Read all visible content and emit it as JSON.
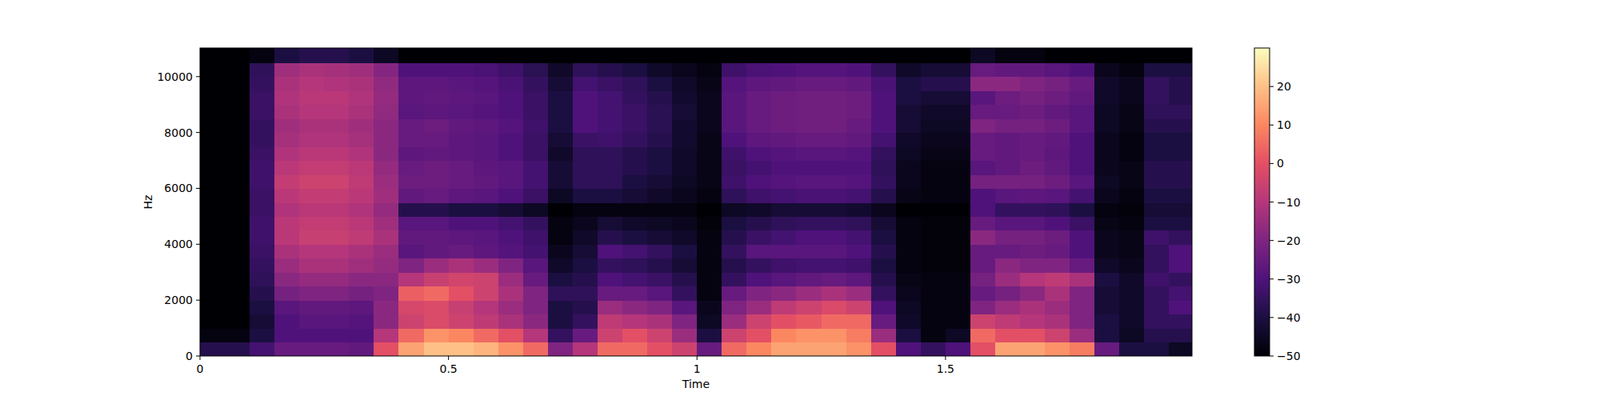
{
  "chart_data": {
    "type": "heatmap",
    "x_label": "Time",
    "y_label": "Hz",
    "color": "magma",
    "x": [
      0,
      0.05,
      0.1,
      0.15,
      0.2,
      0.25,
      0.3,
      0.35,
      0.4,
      0.45,
      0.5,
      0.55,
      0.6,
      0.65,
      0.7,
      0.75,
      0.8,
      0.85,
      0.9,
      0.95,
      1.0,
      1.05,
      1.1,
      1.15,
      1.2,
      1.25,
      1.3,
      1.35,
      1.4,
      1.45,
      1.5,
      1.55,
      1.6,
      1.65,
      1.7,
      1.75,
      1.8,
      1.85,
      1.9,
      1.95,
      2.0
    ],
    "y": [
      0,
      500,
      1000,
      1500,
      2000,
      2500,
      3000,
      3500,
      4000,
      4500,
      5000,
      5500,
      6000,
      6500,
      7000,
      7500,
      8000,
      8500,
      9000,
      9500,
      10000,
      10500,
      11025
    ],
    "z": [
      [
        -38,
        -48,
        -50,
        -50,
        -50,
        -50,
        -50,
        -50,
        -50,
        -50,
        -50,
        -50,
        -50,
        -50,
        -50,
        -50,
        -50,
        -50,
        -50,
        -50,
        -50,
        -50
      ],
      [
        -38,
        -48,
        -50,
        -50,
        -50,
        -50,
        -50,
        -50,
        -50,
        -50,
        -50,
        -50,
        -50,
        -50,
        -50,
        -50,
        -50,
        -50,
        -50,
        -50,
        -50,
        -50
      ],
      [
        -32,
        -40,
        -42,
        -40,
        -38,
        -36,
        -35,
        -34,
        -33,
        -33,
        -34,
        -34,
        -33,
        -33,
        -34,
        -35,
        -35,
        -34,
        -34,
        -35,
        -36,
        -48
      ],
      [
        -25,
        -30,
        -30,
        -28,
        -22,
        -18,
        -15,
        -12,
        -9,
        -9,
        -11,
        -9,
        -7,
        -9,
        -11,
        -13,
        -14,
        -12,
        -11,
        -12,
        -14,
        -40
      ],
      [
        -25,
        -30,
        -28,
        -26,
        -20,
        -16,
        -12,
        -10,
        -6,
        -7,
        -9,
        -7,
        -5,
        -7,
        -9,
        -11,
        -12,
        -10,
        -9,
        -10,
        -12,
        -38
      ],
      [
        -25,
        -30,
        -28,
        -26,
        -20,
        -16,
        -12,
        -10,
        -6,
        -7,
        -9,
        -7,
        -5,
        -7,
        -9,
        -11,
        -12,
        -10,
        -9,
        -11,
        -13,
        -38
      ],
      [
        -26,
        -30,
        -29,
        -27,
        -22,
        -18,
        -14,
        -12,
        -8,
        -9,
        -11,
        -9,
        -8,
        -9,
        -11,
        -13,
        -14,
        -12,
        -11,
        -12,
        -14,
        -40
      ],
      [
        0,
        -10,
        -18,
        -18,
        -20,
        -18,
        -16,
        -15,
        -12,
        -14,
        -16,
        -14,
        -15,
        -16,
        -18,
        -18,
        -18,
        -17,
        -16,
        -17,
        -19,
        -45
      ],
      [
        15,
        5,
        -5,
        -3,
        3,
        -10,
        -20,
        -28,
        -26,
        -28,
        -38,
        -26,
        -24,
        -25,
        -27,
        -25,
        -25,
        -28,
        -27,
        -27,
        -30,
        -50
      ],
      [
        20,
        12,
        -2,
        -2,
        5,
        -6,
        -15,
        -26,
        -26,
        -28,
        -38,
        -25,
        -24,
        -24,
        -26,
        -25,
        -24,
        -27,
        -26,
        -27,
        -30,
        -50
      ],
      [
        20,
        10,
        -5,
        -6,
        0,
        -4,
        -12,
        -25,
        -27,
        -30,
        -40,
        -27,
        -25,
        -25,
        -27,
        -27,
        -26,
        -28,
        -27,
        -28,
        -30,
        -50
      ],
      [
        18,
        5,
        -8,
        -10,
        -5,
        -5,
        -15,
        -27,
        -28,
        -30,
        -40,
        -28,
        -26,
        -27,
        -28,
        -28,
        -27,
        -29,
        -28,
        -29,
        -31,
        -50
      ],
      [
        12,
        0,
        -12,
        -15,
        -12,
        -15,
        -20,
        -29,
        -30,
        -32,
        -42,
        -30,
        -28,
        -28,
        -30,
        -30,
        -29,
        -30,
        -30,
        -31,
        -33,
        -50
      ],
      [
        5,
        -10,
        -18,
        -20,
        -20,
        -25,
        -28,
        -32,
        -33,
        -35,
        -45,
        -34,
        -32,
        -32,
        -34,
        -34,
        -33,
        -34,
        -34,
        -35,
        -37,
        -50
      ],
      [
        -20,
        -35,
        -40,
        -40,
        -36,
        -40,
        -44,
        -46,
        -48,
        -48,
        -50,
        -45,
        -42,
        -42,
        -44,
        -42,
        -40,
        -40,
        -40,
        -42,
        -44,
        -50
      ],
      [
        -10,
        -25,
        -35,
        -38,
        -36,
        -38,
        -40,
        -42,
        -44,
        -46,
        -48,
        -40,
        -36,
        -36,
        -36,
        -34,
        -30,
        -30,
        -30,
        -32,
        -36,
        -50
      ],
      [
        5,
        -5,
        -8,
        -15,
        -25,
        -30,
        -35,
        -30,
        -38,
        -42,
        -48,
        -40,
        -36,
        -36,
        -36,
        -33,
        -32,
        -32,
        -32,
        -34,
        -38,
        -50
      ],
      [
        5,
        0,
        -10,
        -18,
        -25,
        -32,
        -36,
        -32,
        -40,
        -44,
        -48,
        -42,
        -40,
        -38,
        -38,
        -35,
        -34,
        -34,
        -35,
        -36,
        -40,
        -50
      ],
      [
        0,
        -5,
        -12,
        -20,
        -28,
        -34,
        -38,
        -35,
        -42,
        -45,
        -48,
        -44,
        -42,
        -40,
        -40,
        -38,
        -37,
        -37,
        -38,
        -40,
        -44,
        -50
      ],
      [
        -5,
        -15,
        -20,
        -28,
        -35,
        -38,
        -42,
        -40,
        -44,
        -46,
        -48,
        -46,
        -45,
        -44,
        -44,
        -43,
        -43,
        -42,
        -43,
        -44,
        -46,
        -50
      ],
      [
        -25,
        -40,
        -45,
        -46,
        -48,
        -48,
        -48,
        -48,
        -48,
        -49,
        -50,
        -48,
        -47,
        -47,
        -47,
        -47,
        -46,
        -46,
        -46,
        -47,
        -48,
        -50
      ],
      [
        5,
        -5,
        -15,
        -20,
        -25,
        -35,
        -38,
        -35,
        -38,
        -40,
        -45,
        -36,
        -33,
        -34,
        -33,
        -30,
        -28,
        -28,
        -28,
        -29,
        -33,
        -50
      ],
      [
        10,
        0,
        -5,
        -15,
        -20,
        -30,
        -35,
        -28,
        -34,
        -38,
        -44,
        -33,
        -30,
        -32,
        -30,
        -27,
        -25,
        -25,
        -25,
        -27,
        -31,
        -50
      ],
      [
        15,
        10,
        0,
        -8,
        -18,
        -28,
        -33,
        -28,
        -32,
        -36,
        -42,
        -32,
        -29,
        -30,
        -29,
        -26,
        -24,
        -24,
        -24,
        -26,
        -30,
        -50
      ],
      [
        15,
        12,
        2,
        -5,
        -15,
        -26,
        -32,
        -28,
        -30,
        -35,
        -42,
        -31,
        -28,
        -30,
        -28,
        -25,
        -23,
        -23,
        -23,
        -25,
        -29,
        -50
      ],
      [
        15,
        12,
        5,
        -2,
        -12,
        -25,
        -32,
        -28,
        -30,
        -35,
        -42,
        -31,
        -28,
        -30,
        -28,
        -25,
        -23,
        -23,
        -23,
        -25,
        -29,
        -50
      ],
      [
        12,
        8,
        5,
        -5,
        -15,
        -27,
        -33,
        -30,
        -32,
        -36,
        -43,
        -32,
        -29,
        -30,
        -29,
        -26,
        -25,
        -24,
        -24,
        -26,
        -30,
        -50
      ],
      [
        0,
        -15,
        -25,
        -30,
        -35,
        -38,
        -40,
        -38,
        -40,
        -42,
        -46,
        -38,
        -35,
        -36,
        -35,
        -32,
        -30,
        -30,
        -30,
        -31,
        -35,
        -50
      ],
      [
        -30,
        -40,
        -44,
        -45,
        -46,
        -47,
        -48,
        -48,
        -48,
        -48,
        -50,
        -47,
        -46,
        -46,
        -45,
        -44,
        -42,
        -42,
        -40,
        -40,
        -44,
        -50
      ],
      [
        -35,
        -48,
        -48,
        -48,
        -48,
        -48,
        -49,
        -49,
        -49,
        -49,
        -50,
        -48,
        -48,
        -48,
        -47,
        -46,
        -45,
        -44,
        -42,
        -38,
        -42,
        -50
      ],
      [
        -30,
        -45,
        -48,
        -48,
        -48,
        -48,
        -49,
        -49,
        -49,
        -49,
        -50,
        -48,
        -48,
        -48,
        -47,
        -46,
        -45,
        -44,
        -42,
        -38,
        -42,
        -50
      ],
      [
        0,
        5,
        -5,
        -20,
        -25,
        -22,
        -25,
        -25,
        -18,
        -25,
        -30,
        -30,
        -22,
        -28,
        -25,
        -25,
        -20,
        -25,
        -28,
        -18,
        -25,
        -45
      ],
      [
        15,
        0,
        -8,
        -15,
        -22,
        -15,
        -18,
        -25,
        -22,
        -28,
        -35,
        -28,
        -22,
        -26,
        -26,
        -26,
        -22,
        -25,
        -24,
        -18,
        -26,
        -48
      ],
      [
        15,
        0,
        -10,
        -12,
        -18,
        -10,
        -20,
        -24,
        -22,
        -28,
        -35,
        -27,
        -22,
        -24,
        -25,
        -25,
        -22,
        -24,
        -22,
        -20,
        -26,
        -48
      ],
      [
        12,
        -5,
        -12,
        -15,
        -12,
        -8,
        -20,
        -25,
        -24,
        -30,
        -36,
        -28,
        -24,
        -26,
        -27,
        -26,
        -24,
        -26,
        -24,
        -22,
        -28,
        -50
      ],
      [
        8,
        -15,
        -20,
        -20,
        -20,
        -12,
        -25,
        -30,
        -30,
        -34,
        -40,
        -32,
        -28,
        -30,
        -30,
        -30,
        -28,
        -28,
        -26,
        -25,
        -30,
        -50
      ],
      [
        -25,
        -40,
        -40,
        -42,
        -42,
        -40,
        -44,
        -46,
        -46,
        -47,
        -48,
        -46,
        -45,
        -46,
        -46,
        -46,
        -45,
        -45,
        -44,
        -44,
        -46,
        -50
      ],
      [
        -40,
        -45,
        -44,
        -44,
        -44,
        -44,
        -46,
        -47,
        -47,
        -48,
        -49,
        -48,
        -47,
        -47,
        -48,
        -48,
        -47,
        -47,
        -46,
        -46,
        -48,
        -50
      ],
      [
        -40,
        -38,
        -35,
        -35,
        -35,
        -33,
        -35,
        -35,
        -33,
        -40,
        -42,
        -40,
        -38,
        -38,
        -40,
        -40,
        -38,
        -36,
        -35,
        -35,
        -40,
        -50
      ],
      [
        -45,
        -38,
        -35,
        -30,
        -32,
        -35,
        -30,
        -30,
        -35,
        -40,
        -42,
        -40,
        -38,
        -38,
        -40,
        -40,
        -38,
        -36,
        -38,
        -38,
        -40,
        -50
      ]
    ],
    "xlim": [
      0,
      1.996
    ],
    "ylim": [
      0,
      11025
    ],
    "xticks": [
      0,
      0.5,
      1,
      1.5
    ],
    "yticks": [
      0,
      2000,
      4000,
      6000,
      8000,
      10000
    ],
    "colorbar": {
      "range": [
        -50,
        30
      ],
      "ticks": [
        {
          "value": -50,
          "label": "−50"
        },
        {
          "value": -40,
          "label": "−40"
        },
        {
          "value": -30,
          "label": "−30"
        },
        {
          "value": -20,
          "label": "−20"
        },
        {
          "value": -10,
          "label": "−10"
        },
        0,
        10,
        20
      ]
    }
  }
}
